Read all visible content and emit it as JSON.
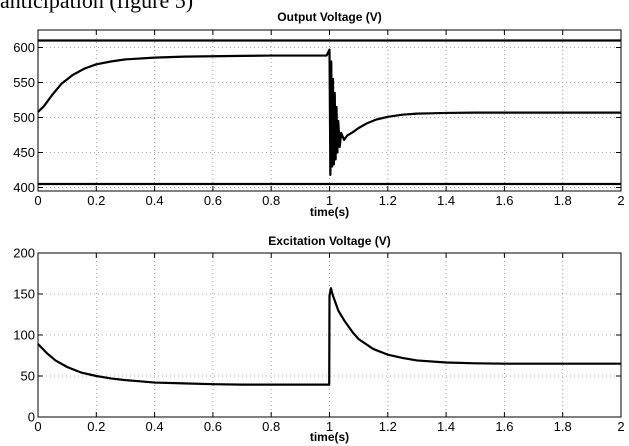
{
  "page_text": {
    "cut_caption": "anticipation (figure 5)"
  },
  "chart_data": [
    {
      "type": "line",
      "title": "Output Voltage (V)",
      "xlabel": "time(s)",
      "ylabel": "",
      "xlim": [
        0,
        2
      ],
      "ylim": [
        395,
        625
      ],
      "xticks": [
        "0",
        "0.2",
        "0.4",
        "0.6",
        "0.8",
        "1",
        "1.2",
        "1.4",
        "1.6",
        "1.8",
        "2"
      ],
      "yticks": [
        "400",
        "450",
        "500",
        "550",
        "600"
      ],
      "grid": true,
      "series": [
        {
          "x": [
            0,
            0.02,
            0.05,
            0.08,
            0.12,
            0.16,
            0.2,
            0.25,
            0.3,
            0.4,
            0.5,
            0.6,
            0.7,
            0.8,
            0.9,
            0.99,
            1.0,
            1.003,
            1.006,
            1.009,
            1.012,
            1.015,
            1.018,
            1.021,
            1.024,
            1.027,
            1.03,
            1.035,
            1.04,
            1.05,
            1.06,
            1.08,
            1.1,
            1.13,
            1.16,
            1.2,
            1.25,
            1.3,
            1.35,
            1.4,
            1.5,
            1.6,
            1.7,
            1.8,
            1.9,
            2.0
          ],
          "y": [
            508,
            516,
            533,
            548,
            561,
            570,
            576,
            580,
            583,
            585.5,
            587,
            587.5,
            588,
            588.5,
            588.5,
            588.5,
            597,
            418,
            580,
            430,
            555,
            433,
            535,
            440,
            515,
            450,
            495,
            458,
            478,
            468,
            474,
            479,
            485,
            492,
            497,
            501,
            504,
            505.5,
            506,
            506.5,
            507,
            507,
            507,
            507,
            507,
            507
          ]
        }
      ],
      "limit_lines": [
        {
          "y": 610
        },
        {
          "y": 405
        }
      ]
    },
    {
      "type": "line",
      "title": "Excitation Voltage (V)",
      "xlabel": "time(s)",
      "ylabel": "",
      "xlim": [
        0,
        2
      ],
      "ylim": [
        0,
        200
      ],
      "xticks": [
        "0",
        "0.2",
        "0.4",
        "0.6",
        "0.8",
        "1",
        "1.2",
        "1.4",
        "1.6",
        "1.8",
        "2"
      ],
      "yticks": [
        "0",
        "50",
        "100",
        "150",
        "200"
      ],
      "grid": true,
      "series": [
        {
          "x": [
            0,
            0.03,
            0.06,
            0.1,
            0.15,
            0.2,
            0.25,
            0.3,
            0.35,
            0.4,
            0.5,
            0.6,
            0.7,
            0.8,
            0.9,
            0.999,
            1.0,
            1.005,
            1.01,
            1.02,
            1.03,
            1.05,
            1.08,
            1.1,
            1.15,
            1.2,
            1.25,
            1.3,
            1.4,
            1.5,
            1.6,
            1.7,
            1.8,
            1.9,
            2.0
          ],
          "y": [
            89,
            78,
            69,
            61,
            54,
            50,
            47,
            45,
            43.5,
            42,
            41,
            40,
            39.5,
            39.5,
            39.5,
            39.5,
            148,
            157,
            150,
            140,
            130,
            118,
            103,
            95,
            83,
            76,
            72,
            69,
            66.5,
            65.5,
            65,
            65,
            65,
            65,
            65
          ]
        }
      ],
      "limit_lines": []
    }
  ]
}
